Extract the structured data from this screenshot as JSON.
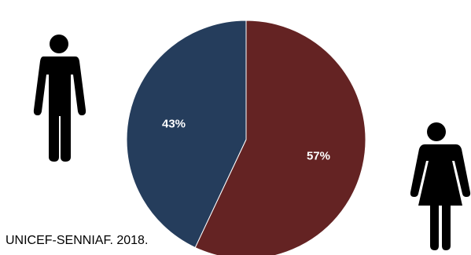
{
  "chart_data": {
    "type": "pie",
    "slices": [
      {
        "label": "43%",
        "value": 43,
        "color": "#253d5c"
      },
      {
        "label": "57%",
        "value": 57,
        "color": "#642323"
      }
    ],
    "icons": [
      "male-figure-icon",
      "female-figure-icon"
    ]
  },
  "source_note": "UNICEF-SENNIAF. 2018."
}
